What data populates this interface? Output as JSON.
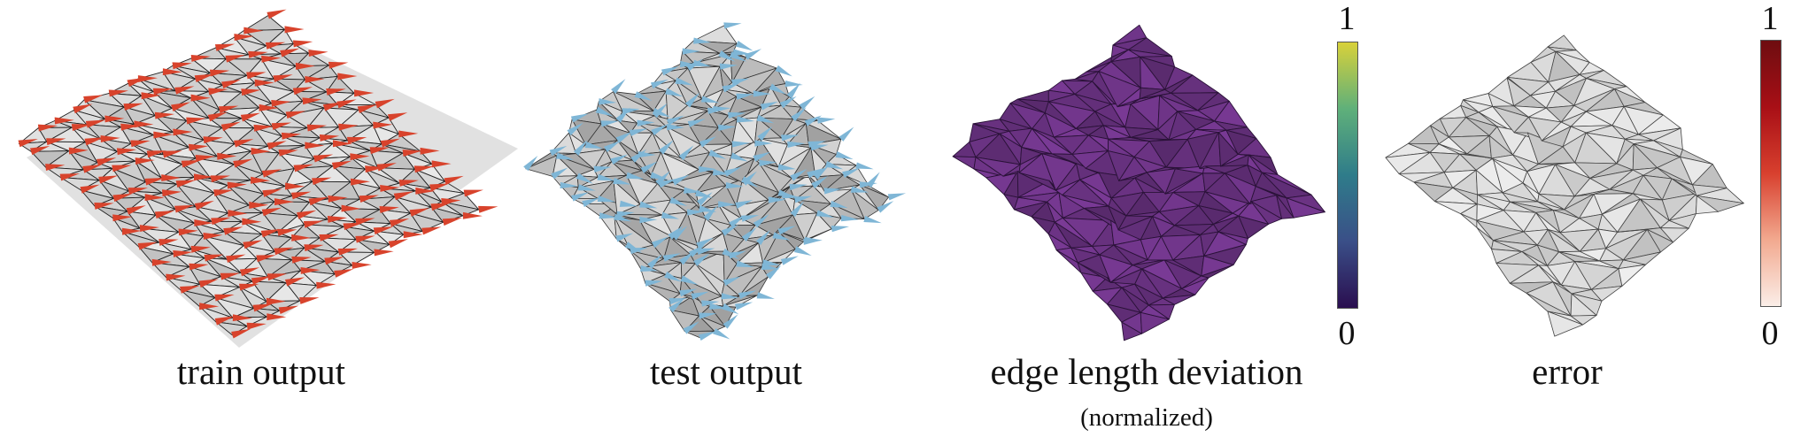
{
  "panels": [
    {
      "caption": "train output",
      "subcaption": "",
      "arrow_color": "#d8432c",
      "face_color": "#e8e8e8"
    },
    {
      "caption": "test output",
      "subcaption": "",
      "arrow_color": "#7fb6d6",
      "face_color": "#e3e3e3"
    },
    {
      "caption": "edge length deviation",
      "subcaption": "(normalized)",
      "arrow_color": "",
      "face_color": "#7a3a96"
    },
    {
      "caption": "error",
      "subcaption": "",
      "arrow_color": "",
      "face_color": "#eeeeee"
    }
  ],
  "colorbars": [
    {
      "top_label": "1",
      "bottom_label": "0",
      "colors": [
        "#d8d13a",
        "#5fb07a",
        "#2f7c8a",
        "#3a4f88",
        "#2a0e4f"
      ]
    },
    {
      "top_label": "1",
      "bottom_label": "0",
      "colors": [
        "#6e0d10",
        "#a80f16",
        "#d8402e",
        "#f2a98f",
        "#fbeee8"
      ]
    }
  ]
}
